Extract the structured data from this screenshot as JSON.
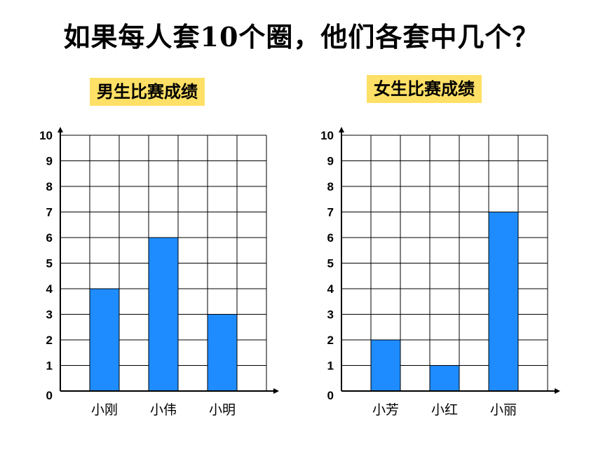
{
  "page": {
    "title": "如果每人套10个圈，他们各套中几个？"
  },
  "chart_data": [
    {
      "type": "bar",
      "title": "男生比赛成绩",
      "categories": [
        "小刚",
        "小伟",
        "小明"
      ],
      "values": [
        4,
        6,
        3
      ],
      "ylim": [
        0,
        10
      ],
      "yticks": [
        0,
        1,
        2,
        3,
        4,
        5,
        6,
        7,
        8,
        9,
        10
      ],
      "grid": true,
      "bar_color": "#1e8cff"
    },
    {
      "type": "bar",
      "title": "女生比赛成绩",
      "categories": [
        "小芳",
        "小红",
        "小丽"
      ],
      "values": [
        2,
        1,
        7
      ],
      "ylim": [
        0,
        10
      ],
      "yticks": [
        0,
        1,
        2,
        3,
        4,
        5,
        6,
        7,
        8,
        9,
        10
      ],
      "grid": true,
      "bar_color": "#1e8cff"
    }
  ]
}
